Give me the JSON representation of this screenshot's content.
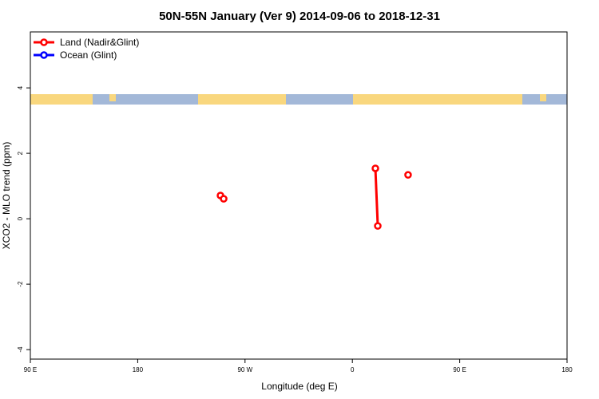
{
  "chart_data": {
    "type": "line",
    "title": "50N-55N January (Ver 9)   2014-09-06 to 2018-12-31",
    "x_label": "Longitude (deg E)",
    "y_label": "XCO2 - MLO trend (ppm)",
    "xlim": [
      -270,
      180
    ],
    "ylim": [
      -4.29,
      5.71
    ],
    "xticks": [
      {
        "value": -270,
        "label": "90 E"
      },
      {
        "value": -180,
        "label": "180"
      },
      {
        "value": -90,
        "label": "90 W"
      },
      0,
      {
        "value": 90,
        "label": "90 E"
      },
      180
    ],
    "yticks": [
      -4,
      -2,
      0,
      2,
      4
    ],
    "legend": "top-left",
    "series": [
      {
        "name": "Land (Nadir&Glint)",
        "color": "#ff0000",
        "x": [
          -110.6,
          null,
          -107.9,
          null,
          19.3,
          21.3,
          null,
          46.7
        ],
        "values": [
          0.71,
          null,
          0.61,
          null,
          1.54,
          -0.22,
          null,
          1.34
        ]
      },
      {
        "name": "Ocean (Glint)",
        "color": "#0000ff",
        "x": [],
        "values": []
      }
    ]
  }
}
